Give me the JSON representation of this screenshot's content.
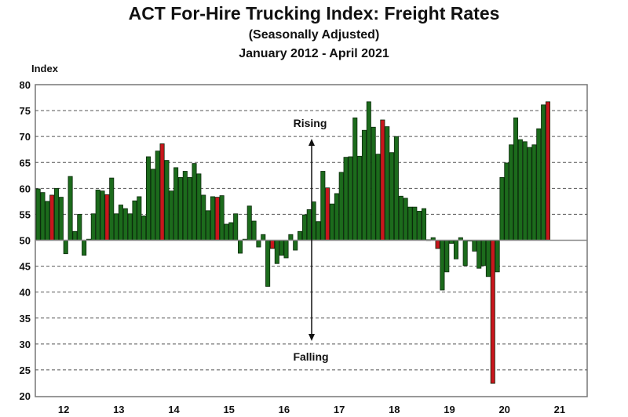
{
  "chart_data": {
    "type": "bar",
    "title": "ACT For-Hire Trucking Index:  Freight Rates",
    "subtitle": "(Seasonally Adjusted)",
    "date_range": "January 2012 - April 2021",
    "ylabel": "Index",
    "xlabel": "",
    "ylim": [
      20,
      80
    ],
    "baseline": 50,
    "yticks": [
      20,
      25,
      30,
      35,
      40,
      45,
      50,
      55,
      60,
      65,
      70,
      75,
      80
    ],
    "xtick_labels": [
      "12",
      "13",
      "14",
      "15",
      "16",
      "17",
      "18",
      "19",
      "20",
      "21"
    ],
    "grid": "horizontal dashed",
    "annotations": {
      "rising": "Rising",
      "falling": "Falling"
    },
    "colors": {
      "default": "#1c6b1c",
      "april": "#c8161d"
    },
    "highlight": "April of each year shown in red",
    "start": "2012-01",
    "frequency": "monthly",
    "values": [
      59.9,
      59.2,
      57.5,
      58.7,
      60.0,
      58.3,
      47.4,
      62.3,
      51.7,
      55.0,
      47.1,
      50.2,
      55.1,
      59.7,
      59.5,
      58.8,
      62.0,
      55.1,
      56.8,
      56.1,
      55.1,
      57.6,
      58.4,
      54.7,
      66.1,
      63.7,
      67.2,
      68.6,
      65.4,
      59.5,
      64.0,
      62.1,
      63.3,
      62.1,
      64.8,
      62.8,
      58.7,
      55.7,
      58.4,
      58.3,
      58.6,
      53.1,
      53.4,
      55.1,
      47.5,
      50.2,
      56.6,
      53.7,
      48.7,
      51.1,
      41.1,
      48.4,
      45.5,
      47.1,
      46.6,
      51.1,
      48.1,
      51.7,
      54.9,
      55.9,
      57.4,
      53.6,
      63.3,
      60.1,
      57.0,
      59.0,
      63.1,
      66.0,
      66.1,
      73.6,
      66.2,
      71.2,
      76.7,
      71.8,
      66.6,
      73.2,
      71.9,
      66.9,
      70.0,
      58.5,
      58.1,
      56.4,
      56.4,
      55.6,
      56.1,
      50.1,
      50.5,
      48.4,
      40.4,
      43.9,
      49.4,
      46.4,
      50.5,
      45.1,
      49.9,
      47.9,
      44.6,
      45.1,
      43.0,
      22.4,
      43.9,
      62.1,
      64.9,
      68.4,
      73.6,
      69.4,
      69.0,
      67.9,
      68.4,
      71.5,
      76.1,
      76.7
    ]
  }
}
